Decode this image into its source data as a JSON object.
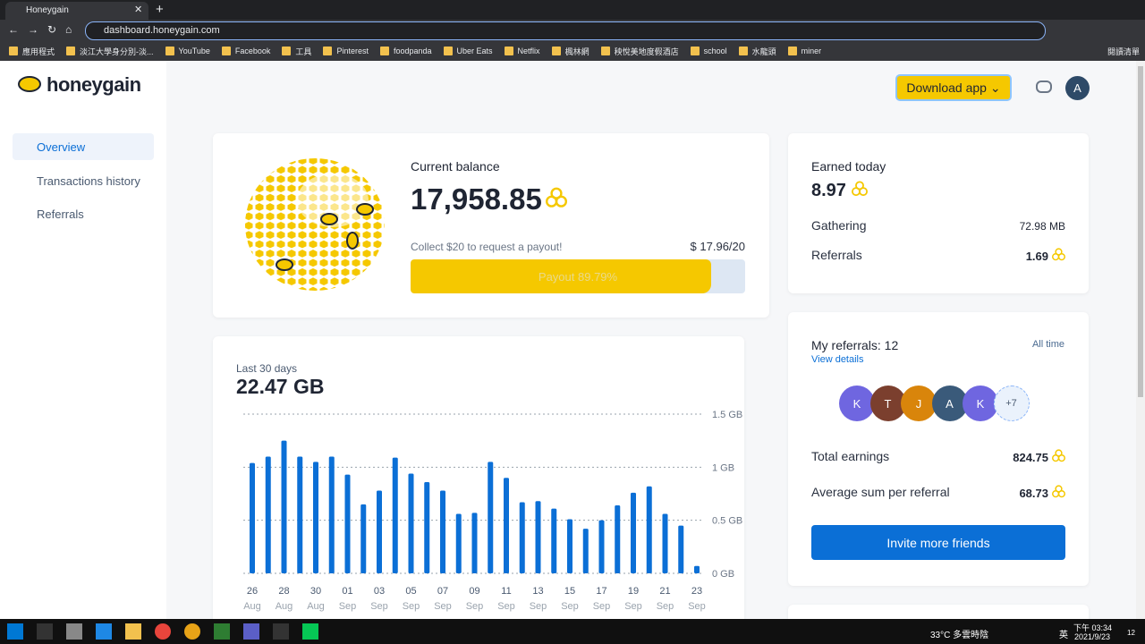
{
  "browser": {
    "tab_title": "Honeygain",
    "url": "dashboard.honeygain.com",
    "bookmarks": [
      "應用程式",
      "淡江大學身分別-淡...",
      "YouTube",
      "Facebook",
      "工具",
      "Pinterest",
      "foodpanda",
      "Uber Eats",
      "Netflix",
      "楓林網",
      "秧悅美地度假酒店",
      "school",
      "水龍頭",
      "miner"
    ],
    "reading_list": "閱讀清單"
  },
  "header": {
    "logo": "honeygain",
    "download_button": "Download app",
    "avatar": "A"
  },
  "sidebar": {
    "nav": [
      "Overview",
      "Transactions history",
      "Referrals"
    ]
  },
  "balance": {
    "label": "Current balance",
    "amount": "17,958.85",
    "payout_note": "Collect $20 to request a payout!",
    "payout_status": "$ 17.96/20",
    "progress": {
      "value": 89.79,
      "label": "Payout 89.79%"
    }
  },
  "today": {
    "label": "Earned today",
    "amount": "8.97",
    "rows": [
      {
        "label": "Gathering",
        "value": "72.98 MB"
      },
      {
        "label": "Referrals",
        "value": "1.69"
      }
    ]
  },
  "referrals": {
    "title": "My referrals: 12",
    "period": "All time",
    "details_link": "View details",
    "avatars": [
      "K",
      "T",
      "J",
      "A",
      "K",
      "+7"
    ],
    "rows": [
      {
        "label": "Total earnings",
        "value": "824.75"
      },
      {
        "label": "Average sum per referral",
        "value": "68.73"
      }
    ],
    "invite_button": "Invite more friends"
  },
  "chart_data": {
    "type": "bar",
    "subtitle": "Last 30 days",
    "title": "22.47 GB",
    "categories": [
      "26",
      null,
      "28",
      null,
      "30",
      null,
      "01",
      null,
      "03",
      null,
      "05",
      null,
      "07",
      null,
      "09",
      null,
      "11",
      null,
      "13",
      null,
      "15",
      null,
      "17",
      null,
      "19",
      null,
      "21",
      null,
      "23"
    ],
    "category_months": [
      "Aug",
      null,
      "Aug",
      null,
      "Aug",
      null,
      "Sep",
      null,
      "Sep",
      null,
      "Sep",
      null,
      "Sep",
      null,
      "Sep",
      null,
      "Sep",
      null,
      "Sep",
      null,
      "Sep",
      null,
      "Sep",
      null,
      "Sep",
      null,
      "Sep",
      null,
      "Sep"
    ],
    "values": [
      1.04,
      1.1,
      1.25,
      1.1,
      1.05,
      1.1,
      0.93,
      0.65,
      0.78,
      1.09,
      0.94,
      0.86,
      0.78,
      0.56,
      0.57,
      1.05,
      0.9,
      0.67,
      0.68,
      0.61,
      0.51,
      0.42,
      0.5,
      0.64,
      0.76,
      0.82,
      0.56,
      0.45,
      0.07
    ],
    "color": "#0b6fd6",
    "ylim": [
      0,
      1.5
    ],
    "yticks": [
      {
        "value": 0,
        "label": "0 GB"
      },
      {
        "value": 0.5,
        "label": "0.5 GB"
      },
      {
        "value": 1,
        "label": "1 GB"
      },
      {
        "value": 1.5,
        "label": "1.5 GB"
      }
    ],
    "grid": true
  },
  "taskbar": {
    "weather": "33°C 多雲時陰",
    "ime": "英",
    "time": "下午 03:34",
    "date": "2021/9/23",
    "notifications": "12"
  }
}
